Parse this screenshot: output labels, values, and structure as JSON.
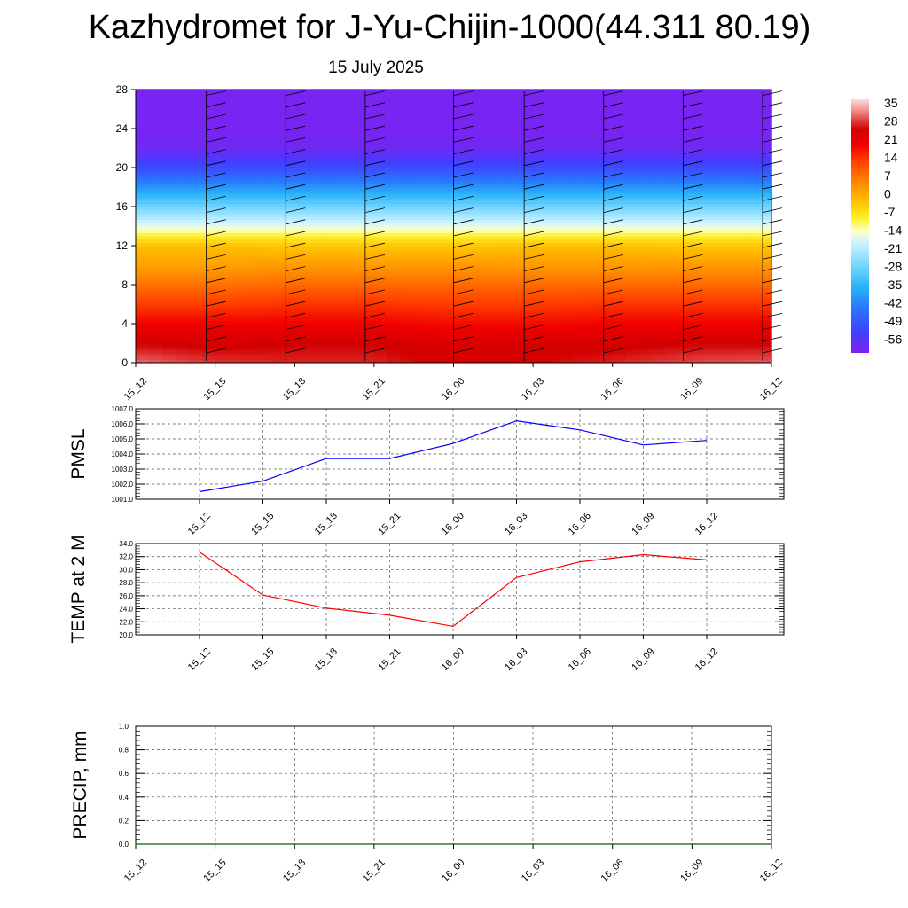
{
  "title": "Kazhydromet for J-Yu-Chijin-1000(44.311 80.19)",
  "subtitle": "15 July 2025",
  "time_labels": [
    "15_12",
    "15_15",
    "15_18",
    "15_21",
    "16_00",
    "16_03",
    "16_06",
    "16_09",
    "16_12"
  ],
  "chart_data": [
    {
      "type": "heatmap",
      "title": "",
      "ylabel": "",
      "xlabel": "",
      "x": [
        "15_12",
        "15_15",
        "15_18",
        "15_21",
        "16_00",
        "16_03",
        "16_06",
        "16_09",
        "16_12"
      ],
      "yticks": [
        0,
        4,
        8,
        12,
        16,
        20,
        24,
        28
      ],
      "ylim": [
        0,
        28
      ],
      "levels": [
        0,
        2,
        4,
        6,
        8,
        10,
        12,
        13,
        14,
        16,
        18,
        20,
        22,
        24,
        28
      ],
      "values": [
        [
          34,
          31,
          30,
          30,
          27,
          28,
          30,
          32,
          33
        ],
        [
          28,
          27,
          28,
          28,
          26,
          27,
          27,
          28,
          28
        ],
        [
          22,
          22,
          22,
          22,
          21,
          21,
          22,
          22,
          22
        ],
        [
          16,
          16,
          17,
          17,
          16,
          16,
          17,
          17,
          17
        ],
        [
          10,
          10,
          11,
          11,
          11,
          11,
          11,
          11,
          11
        ],
        [
          4,
          4,
          5,
          5,
          5,
          5,
          5,
          5,
          5
        ],
        [
          0,
          0,
          -1,
          -1,
          -1,
          0,
          0,
          -1,
          -1
        ],
        [
          -7,
          -7,
          -7,
          -7,
          -7,
          -7,
          -7,
          -7,
          -7
        ],
        [
          -14,
          -14,
          -14,
          -14,
          -14,
          -14,
          -14,
          -14,
          -14
        ],
        [
          -26,
          -26,
          -26,
          -26,
          -26,
          -26,
          -26,
          -26,
          -26
        ],
        [
          -38,
          -38,
          -38,
          -38,
          -38,
          -38,
          -38,
          -38,
          -38
        ],
        [
          -50,
          -50,
          -50,
          -50,
          -50,
          -50,
          -50,
          -50,
          -50
        ],
        [
          -58,
          -58,
          -58,
          -58,
          -58,
          -58,
          -58,
          -58,
          -58
        ],
        [
          -59,
          -59,
          -59,
          -59,
          -59,
          -59,
          -59,
          -59,
          -59
        ],
        [
          -59,
          -59,
          -59,
          -59,
          -59,
          -59,
          -59,
          -59,
          -59
        ]
      ],
      "colorbar": {
        "labels": [
          "35",
          "28",
          "21",
          "14",
          "7",
          "0",
          "-7",
          "-14",
          "-21",
          "-28",
          "-35",
          "-42",
          "-49",
          "-56"
        ],
        "min": -60,
        "max": 40
      },
      "wind_barbs": true,
      "barb_columns": [
        1,
        2,
        3,
        4,
        5,
        6,
        7,
        8
      ]
    },
    {
      "type": "line",
      "ylabel": "PMSL",
      "x": [
        "15_12",
        "15_15",
        "15_18",
        "15_21",
        "16_00",
        "16_03",
        "16_06",
        "16_09",
        "16_12"
      ],
      "series": [
        {
          "values": [
            1001.5,
            1002.2,
            1003.7,
            1003.7,
            1004.7,
            1006.2,
            1005.6,
            1004.6,
            1004.9
          ]
        }
      ],
      "ylim": [
        1001.0,
        1007.0
      ],
      "yticks": [
        "1001.0",
        "1002.0",
        "1003.0",
        "1004.0",
        "1005.0",
        "1006.0",
        "1007.0"
      ],
      "color": "#0000ff",
      "grid": true
    },
    {
      "type": "line",
      "ylabel": "TEMP at 2 M",
      "x": [
        "15_12",
        "15_15",
        "15_18",
        "15_21",
        "16_00",
        "16_03",
        "16_06",
        "16_09",
        "16_12"
      ],
      "series": [
        {
          "values": [
            32.7,
            26.1,
            24.1,
            23.0,
            21.3,
            28.8,
            31.2,
            32.3,
            31.5
          ]
        }
      ],
      "ylim": [
        20.0,
        34.0
      ],
      "yticks": [
        "20.0",
        "22.0",
        "24.0",
        "26.0",
        "28.0",
        "30.0",
        "32.0",
        "34.0"
      ],
      "color": "#ff0000",
      "grid": true
    },
    {
      "type": "line",
      "ylabel": "PRECIP, mm",
      "x": [
        "15_12",
        "15_15",
        "15_18",
        "15_21",
        "16_00",
        "16_03",
        "16_06",
        "16_09",
        "16_12"
      ],
      "series": [
        {
          "values": [
            0,
            0,
            0,
            0,
            0,
            0,
            0,
            0,
            0
          ]
        }
      ],
      "ylim": [
        0.0,
        1.0
      ],
      "yticks": [
        "0.0",
        "0.2",
        "0.4",
        "0.6",
        "0.8",
        "1.0"
      ],
      "color": "#006400",
      "grid": true
    }
  ]
}
